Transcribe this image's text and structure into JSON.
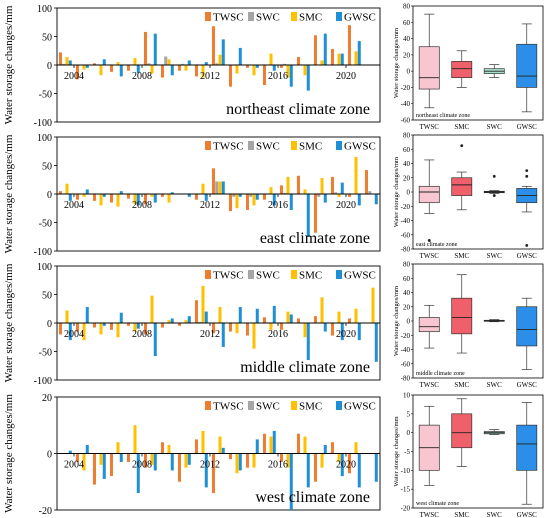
{
  "chart_data": [
    {
      "type": "bar",
      "zone": "northeast climate zone",
      "ylabel": "Water storage changes/mm",
      "ylim": [
        -100,
        100
      ],
      "yticks": [
        -100,
        -50,
        0,
        50,
        100
      ],
      "x": [
        2003,
        2004,
        2005,
        2006,
        2007,
        2008,
        2009,
        2010,
        2011,
        2012,
        2013,
        2014,
        2015,
        2016,
        2017,
        2018,
        2019,
        2020,
        2021
      ],
      "xticks": [
        2004,
        2008,
        2012,
        2016,
        2020
      ],
      "series": [
        {
          "name": "TWSC",
          "values": [
            22,
            -25,
            3,
            -12,
            -10,
            58,
            -22,
            -10,
            -20,
            68,
            -38,
            -5,
            -35,
            -5,
            14,
            52,
            28,
            70,
            0
          ]
        },
        {
          "name": "SWC",
          "values": [
            2,
            -1,
            1,
            0,
            1,
            3,
            15,
            2,
            0,
            3,
            -1,
            0,
            0,
            2,
            1,
            1,
            1,
            0,
            0
          ]
        },
        {
          "name": "SMC",
          "values": [
            14,
            -8,
            -18,
            5,
            12,
            -15,
            10,
            -10,
            -22,
            18,
            -15,
            -18,
            20,
            -22,
            -18,
            8,
            20,
            24,
            0
          ]
        },
        {
          "name": "GWSC",
          "values": [
            8,
            -5,
            10,
            -20,
            -14,
            55,
            -18,
            8,
            5,
            45,
            30,
            -5,
            -10,
            -38,
            -45,
            55,
            20,
            42,
            0
          ]
        }
      ]
    },
    {
      "type": "bar",
      "zone": "east climate zone",
      "ylabel": "Water storage changes/mm",
      "ylim": [
        -100,
        100
      ],
      "yticks": [
        -100,
        -50,
        0,
        50,
        100
      ],
      "x": [
        2003,
        2004,
        2005,
        2006,
        2007,
        2008,
        2009,
        2010,
        2011,
        2012,
        2013,
        2014,
        2015,
        2016,
        2017,
        2018,
        2019,
        2020,
        2021
      ],
      "xticks": [
        2004,
        2008,
        2012,
        2016,
        2020
      ],
      "series": [
        {
          "name": "TWSC",
          "values": [
            5,
            -10,
            -12,
            -15,
            -8,
            -18,
            -5,
            0,
            -10,
            45,
            -30,
            -28,
            -10,
            15,
            32,
            -68,
            30,
            -5,
            42
          ]
        },
        {
          "name": "SWC",
          "values": [
            1,
            0,
            -1,
            0,
            0,
            0,
            0,
            0,
            0,
            22,
            -5,
            -5,
            0,
            2,
            0,
            -5,
            3,
            0,
            5
          ]
        },
        {
          "name": "SMC",
          "values": [
            18,
            -5,
            -20,
            -22,
            -18,
            -5,
            -15,
            0,
            18,
            22,
            -25,
            -20,
            12,
            30,
            8,
            28,
            -5,
            65,
            0
          ]
        },
        {
          "name": "GWSC",
          "values": [
            -12,
            8,
            -5,
            5,
            -20,
            -15,
            3,
            -5,
            -12,
            22,
            -5,
            -10,
            -20,
            -28,
            -75,
            -15,
            20,
            -20,
            -18
          ]
        }
      ]
    },
    {
      "type": "bar",
      "zone": "middle climate zone",
      "ylabel": "Water storage changes/mm",
      "ylim": [
        -100,
        100
      ],
      "yticks": [
        -100,
        -50,
        0,
        50,
        100
      ],
      "x": [
        2003,
        2004,
        2005,
        2006,
        2007,
        2008,
        2009,
        2010,
        2011,
        2012,
        2013,
        2014,
        2015,
        2016,
        2017,
        2018,
        2019,
        2020,
        2021
      ],
      "xticks": [
        2004,
        2008,
        2012,
        2016,
        2020
      ],
      "series": [
        {
          "name": "TWSC",
          "values": [
            -20,
            -15,
            -8,
            -12,
            -5,
            -20,
            -8,
            -5,
            40,
            -18,
            -15,
            -22,
            10,
            -12,
            8,
            12,
            -22,
            8,
            0
          ]
        },
        {
          "name": "SWC",
          "values": [
            0,
            0,
            1,
            0,
            0,
            -1,
            0,
            0,
            2,
            -1,
            0,
            0,
            1,
            0,
            0,
            1,
            0,
            1,
            0
          ]
        },
        {
          "name": "SMC",
          "values": [
            22,
            -30,
            -20,
            -25,
            -15,
            48,
            5,
            5,
            65,
            28,
            -18,
            -45,
            -12,
            20,
            -25,
            45,
            20,
            25,
            62
          ]
        },
        {
          "name": "GWSC",
          "values": [
            -30,
            28,
            -5,
            18,
            -10,
            -58,
            8,
            12,
            20,
            -42,
            28,
            25,
            30,
            15,
            -65,
            -15,
            -30,
            -30,
            -68
          ]
        }
      ]
    },
    {
      "type": "bar",
      "zone": "west climate zone",
      "ylabel": "Water storage changes/mm",
      "ylim": [
        -20,
        20
      ],
      "yticks": [
        -20,
        0,
        20
      ],
      "x": [
        2003,
        2004,
        2005,
        2006,
        2007,
        2008,
        2009,
        2010,
        2011,
        2012,
        2013,
        2014,
        2015,
        2016,
        2017,
        2018,
        2019,
        2020,
        2021
      ],
      "xticks": [
        2004,
        2008,
        2012,
        2016,
        2020
      ],
      "series": [
        {
          "name": "TWSC",
          "values": [
            0,
            -3,
            -11,
            -8,
            -3,
            -5,
            4,
            -10,
            5,
            -14,
            -2,
            -5,
            7,
            -3,
            7,
            -10,
            4,
            -7,
            0
          ]
        },
        {
          "name": "SWC",
          "values": [
            0,
            0,
            0,
            0,
            0,
            0,
            0,
            0,
            0,
            0,
            0,
            0,
            0,
            0,
            0,
            0,
            0,
            0,
            0
          ]
        },
        {
          "name": "SMC",
          "values": [
            0,
            -6,
            -4,
            4,
            10,
            -4,
            3,
            -5,
            8,
            6,
            -7,
            -5,
            6,
            -5,
            6,
            -5,
            -3,
            4,
            0
          ]
        },
        {
          "name": "GWSC",
          "values": [
            1,
            3,
            -9,
            -3,
            -14,
            -6,
            -6,
            -4,
            -12,
            2,
            -6,
            5,
            8,
            -20,
            -12,
            3,
            -8,
            -12,
            -10
          ]
        }
      ]
    },
    {
      "type": "box",
      "zone": "northeast climate zone",
      "ylabel": "Water storage changes/mm",
      "ylim": [
        -60,
        80
      ],
      "yticks": [
        -60,
        -40,
        -20,
        0,
        20,
        40,
        60,
        80
      ],
      "categories": [
        "TWSC",
        "SMC",
        "SWC",
        "GWSC"
      ],
      "boxes": [
        {
          "name": "TWSC",
          "min": -45,
          "q1": -22,
          "median": -8,
          "q3": 30,
          "max": 70,
          "outliers": []
        },
        {
          "name": "SMC",
          "min": -20,
          "q1": -8,
          "median": 3,
          "q3": 12,
          "max": 25,
          "outliers": []
        },
        {
          "name": "SWC",
          "min": -8,
          "q1": -3,
          "median": 0,
          "q3": 3,
          "max": 8,
          "outliers": []
        },
        {
          "name": "GWSC",
          "min": -50,
          "q1": -20,
          "median": -6,
          "q3": 33,
          "max": 58,
          "outliers": []
        }
      ]
    },
    {
      "type": "box",
      "zone": "east climate zone",
      "ylabel": "Water storage changes/mm",
      "ylim": [
        -80,
        80
      ],
      "yticks": [
        -80,
        -60,
        -40,
        -20,
        0,
        20,
        40,
        60,
        80
      ],
      "categories": [
        "TWSC",
        "SMC",
        "SWC",
        "GWSC"
      ],
      "boxes": [
        {
          "name": "TWSC",
          "min": -30,
          "q1": -15,
          "median": 0,
          "q3": 8,
          "max": 45,
          "outliers": [
            -68
          ]
        },
        {
          "name": "SMC",
          "min": -25,
          "q1": -5,
          "median": 10,
          "q3": 20,
          "max": 28,
          "outliers": [
            65
          ]
        },
        {
          "name": "SWC",
          "min": -2,
          "q1": -1,
          "median": 0,
          "q3": 1,
          "max": 2,
          "outliers": [
            -5,
            22
          ]
        },
        {
          "name": "GWSC",
          "min": -28,
          "q1": -15,
          "median": -5,
          "q3": 5,
          "max": 8,
          "outliers": [
            22,
            30,
            -75
          ]
        }
      ]
    },
    {
      "type": "box",
      "zone": "middle climate zone",
      "ylabel": "Water storage changes/mm",
      "ylim": [
        -80,
        80
      ],
      "yticks": [
        -80,
        -60,
        -40,
        -20,
        0,
        20,
        40,
        60,
        80
      ],
      "categories": [
        "TWSC",
        "SMC",
        "SWC",
        "GWSC"
      ],
      "boxes": [
        {
          "name": "TWSC",
          "min": -38,
          "q1": -15,
          "median": -8,
          "q3": 5,
          "max": 22,
          "outliers": []
        },
        {
          "name": "SMC",
          "min": -45,
          "q1": -18,
          "median": 5,
          "q3": 32,
          "max": 65,
          "outliers": []
        },
        {
          "name": "SWC",
          "min": -1,
          "q1": 0,
          "median": 0,
          "q3": 1,
          "max": 2,
          "outliers": []
        },
        {
          "name": "GWSC",
          "min": -68,
          "q1": -35,
          "median": -12,
          "q3": 20,
          "max": 32,
          "outliers": []
        }
      ]
    },
    {
      "type": "box",
      "zone": "west climate zone",
      "ylabel": "Water storage changes/mm",
      "ylim": [
        -20,
        10
      ],
      "yticks": [
        -20,
        -15,
        -10,
        -5,
        0,
        5,
        10
      ],
      "categories": [
        "TWSC",
        "SMC",
        "SWC",
        "GWSC"
      ],
      "boxes": [
        {
          "name": "TWSC",
          "min": -14,
          "q1": -10,
          "median": -4,
          "q3": 2,
          "max": 7,
          "outliers": []
        },
        {
          "name": "SMC",
          "min": -9,
          "q1": -4,
          "median": 0,
          "q3": 5,
          "max": 9,
          "outliers": []
        },
        {
          "name": "SWC",
          "min": -0.5,
          "q1": -0.3,
          "median": 0,
          "q3": 0.3,
          "max": 0.8,
          "outliers": []
        },
        {
          "name": "GWSC",
          "min": -19,
          "q1": -10,
          "median": -3,
          "q3": 2,
          "max": 8,
          "outliers": []
        }
      ]
    }
  ],
  "colors": {
    "TWSC": "#ed7d31",
    "SWC": "#a5a5a5",
    "SMC": "#ffc000",
    "GWSC": "#1f8fd6",
    "box_TWSC": "#f8c6d1",
    "box_SMC": "#f0606a",
    "box_SWC": "#a8e0cf",
    "box_GWSC": "#2b8fe9"
  }
}
